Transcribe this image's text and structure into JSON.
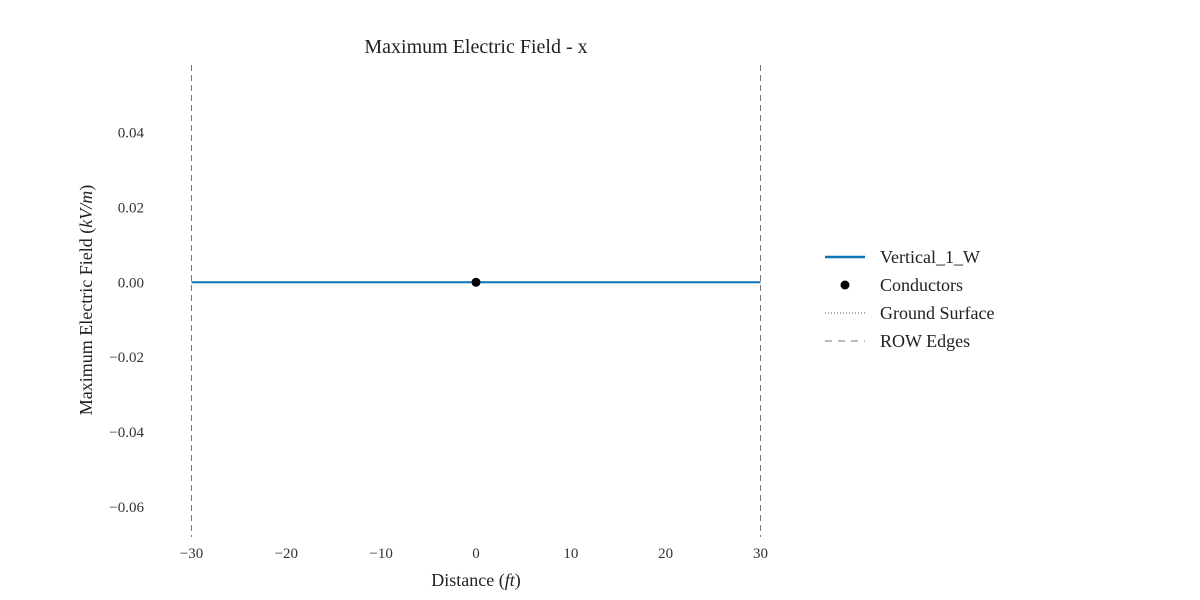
{
  "chart_data": {
    "type": "line",
    "title": "Maximum Electric Field - x",
    "xlabel": {
      "text": "Distance",
      "unit": "ft"
    },
    "ylabel": {
      "text": "Maximum Electric Field",
      "unit": "kV/m"
    },
    "xlim": [
      -31,
      31
    ],
    "ylim": [
      -0.068,
      0.058
    ],
    "x_ticks": [
      -30,
      -20,
      -10,
      0,
      10,
      20,
      30
    ],
    "x_tick_labels": [
      "−30",
      "−20",
      "−10",
      "0",
      "10",
      "20",
      "30"
    ],
    "y_ticks": [
      0.04,
      0.02,
      0.0,
      -0.02,
      -0.04,
      -0.06
    ],
    "y_tick_labels": [
      "0.04",
      "0.02",
      "0.00",
      "−0.02",
      "−0.04",
      "−0.06"
    ],
    "grid": false,
    "legend_position": "right",
    "series": [
      {
        "name": "Vertical_1_W",
        "style": "solid",
        "color": "#0f73b8",
        "x": [
          -30,
          30
        ],
        "y": [
          0.0,
          0.0
        ]
      },
      {
        "name": "Conductors",
        "style": "marker",
        "color": "#000000",
        "x": [
          0
        ],
        "y": [
          0.0
        ]
      },
      {
        "name": "Ground Surface",
        "style": "dotted",
        "color": "#555555",
        "x": [
          -30,
          30
        ],
        "y": [
          0.0,
          0.0
        ]
      },
      {
        "name": "ROW Edges",
        "style": "dashed",
        "color": "#777777",
        "x": [
          -30,
          30
        ],
        "y": null
      }
    ]
  }
}
